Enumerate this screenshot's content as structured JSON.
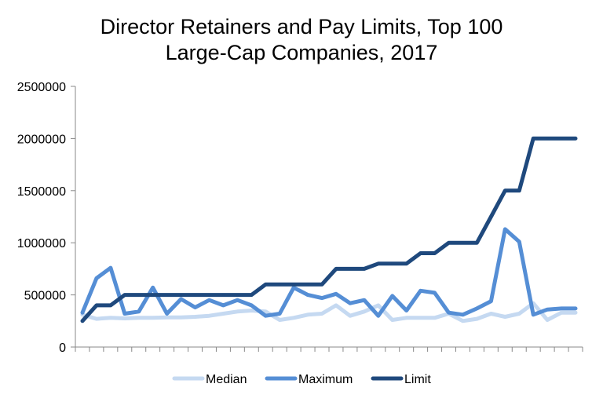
{
  "chart_data": {
    "type": "line",
    "title_lines": [
      "Director Retainers and Pay Limits, Top 100",
      "Large-Cap Companies, 2017"
    ],
    "xlabel": "",
    "ylabel": "",
    "ylim": [
      0,
      2500000
    ],
    "yticks": [
      0,
      500000,
      1000000,
      1500000,
      2000000,
      2500000
    ],
    "ytick_labels": [
      "0",
      "500000",
      "1000000",
      "1500000",
      "2000000",
      "2500000"
    ],
    "grid": false,
    "legend_position": "bottom",
    "x": [
      1,
      2,
      3,
      4,
      5,
      6,
      7,
      8,
      9,
      10,
      11,
      12,
      13,
      14,
      15,
      16,
      17,
      18,
      19,
      20,
      21,
      22,
      23,
      24,
      25,
      26,
      27,
      28,
      29,
      30,
      31,
      32,
      33,
      34,
      35,
      36
    ],
    "series": [
      {
        "name": "Median",
        "color": "#c5d9f1",
        "values": [
          310000,
          270000,
          280000,
          275000,
          280000,
          280000,
          285000,
          285000,
          290000,
          300000,
          320000,
          340000,
          350000,
          340000,
          260000,
          280000,
          310000,
          320000,
          400000,
          300000,
          340000,
          400000,
          260000,
          280000,
          280000,
          280000,
          320000,
          250000,
          270000,
          320000,
          290000,
          320000,
          420000,
          260000,
          330000,
          330000
        ]
      },
      {
        "name": "Maximum",
        "color": "#558ed5",
        "values": [
          330000,
          660000,
          760000,
          320000,
          340000,
          570000,
          320000,
          460000,
          380000,
          450000,
          400000,
          450000,
          400000,
          300000,
          320000,
          570000,
          500000,
          470000,
          510000,
          420000,
          450000,
          300000,
          490000,
          350000,
          540000,
          520000,
          330000,
          310000,
          370000,
          440000,
          1130000,
          1010000,
          310000,
          360000,
          370000,
          370000
        ]
      },
      {
        "name": "Limit",
        "color": "#1f497d",
        "values": [
          250000,
          400000,
          400000,
          500000,
          500000,
          500000,
          500000,
          500000,
          500000,
          500000,
          500000,
          500000,
          500000,
          600000,
          600000,
          600000,
          600000,
          600000,
          750000,
          750000,
          750000,
          800000,
          800000,
          800000,
          900000,
          900000,
          1000000,
          1000000,
          1000000,
          1250000,
          1500000,
          1500000,
          2000000,
          2000000,
          2000000,
          2000000
        ]
      }
    ]
  }
}
